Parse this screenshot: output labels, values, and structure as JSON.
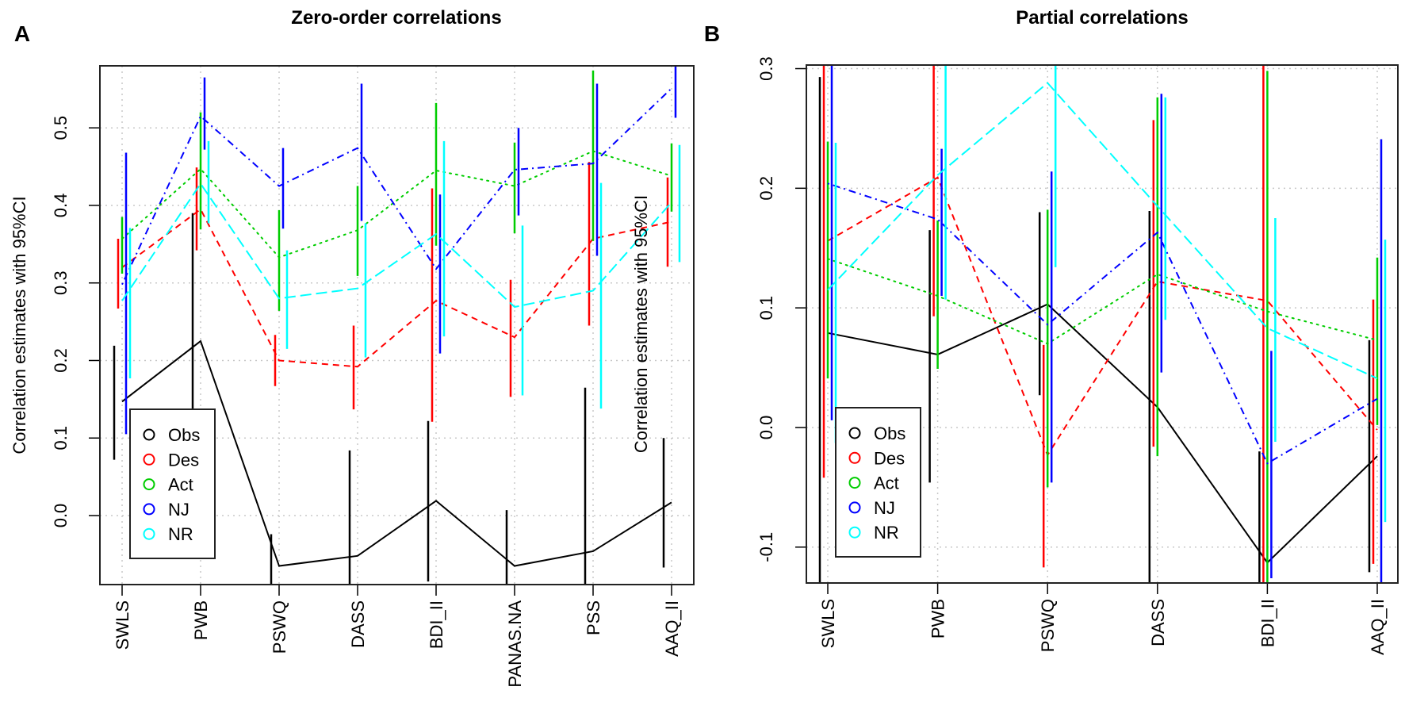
{
  "chart_data": [
    {
      "panel_label": "A",
      "type": "line",
      "title": "Zero-order correlations",
      "ylabel": "Correlation estimates with 95%CI",
      "xlabel": "",
      "ylim": [
        -0.089,
        0.58
      ],
      "yticks": [
        0.0,
        0.1,
        0.2,
        0.3,
        0.4,
        0.5
      ],
      "ytick_labels": [
        "0.0",
        "0.1",
        "0.2",
        "0.3",
        "0.4",
        "0.5"
      ],
      "grid": true,
      "legend_position": "bottom-left",
      "categories": [
        "SWLS",
        "PWB",
        "PSWQ",
        "DASS",
        "BDI_II",
        "PANAS.NA",
        "PSS",
        "AAQ_II"
      ],
      "series": [
        {
          "name": "Obs",
          "color": "#000000",
          "dash": "solid",
          "values": [
            0.147,
            0.225,
            -0.065,
            -0.052,
            0.019,
            -0.065,
            -0.046,
            0.017
          ],
          "ci_low": [
            0.072,
            0.047,
            -0.15,
            -0.19,
            -0.085,
            -0.14,
            -0.26,
            -0.067
          ],
          "ci_high": [
            0.219,
            0.39,
            -0.024,
            0.084,
            0.122,
            0.007,
            0.165,
            0.1
          ]
        },
        {
          "name": "Des",
          "color": "#ff0000",
          "dash": "dashed",
          "values": [
            0.32,
            0.395,
            0.2,
            0.192,
            0.277,
            0.23,
            0.357,
            0.379
          ],
          "ci_low": [
            0.267,
            0.342,
            0.167,
            0.137,
            0.121,
            0.153,
            0.245,
            0.321
          ],
          "ci_high": [
            0.357,
            0.449,
            0.233,
            0.245,
            0.422,
            0.304,
            0.456,
            0.436
          ]
        },
        {
          "name": "Act",
          "color": "#00cd00",
          "dash": "dotted",
          "values": [
            0.357,
            0.447,
            0.333,
            0.368,
            0.445,
            0.425,
            0.47,
            0.438
          ],
          "ci_low": [
            0.312,
            0.369,
            0.264,
            0.309,
            0.348,
            0.364,
            0.354,
            0.392
          ],
          "ci_high": [
            0.385,
            0.52,
            0.394,
            0.425,
            0.532,
            0.481,
            0.574,
            0.48
          ]
        },
        {
          "name": "NJ",
          "color": "#0000ff",
          "dash": "dotdash",
          "values": [
            0.298,
            0.515,
            0.425,
            0.474,
            0.318,
            0.446,
            0.454,
            0.551
          ],
          "ci_low": [
            0.105,
            0.472,
            0.37,
            0.38,
            0.209,
            0.387,
            0.335,
            0.513
          ],
          "ci_high": [
            0.468,
            0.565,
            0.474,
            0.557,
            0.414,
            0.5,
            0.557,
            0.6
          ]
        },
        {
          "name": "NR",
          "color": "#00ffff",
          "dash": "longdash",
          "values": [
            0.277,
            0.428,
            0.28,
            0.293,
            0.363,
            0.269,
            0.29,
            0.404
          ],
          "ci_low": [
            0.177,
            0.377,
            0.215,
            0.204,
            0.231,
            0.155,
            0.138,
            0.327
          ],
          "ci_high": [
            0.371,
            0.483,
            0.342,
            0.377,
            0.483,
            0.374,
            0.429,
            0.478
          ]
        }
      ]
    },
    {
      "panel_label": "B",
      "type": "line",
      "title": "Partial correlations",
      "ylabel": "Correlation estimates with 95%CI",
      "xlabel": "",
      "ylim": [
        -0.13,
        0.303
      ],
      "yticks": [
        -0.1,
        0.0,
        0.1,
        0.2,
        0.3
      ],
      "ytick_labels": [
        "-0.1",
        "0.0",
        "0.1",
        "0.2",
        "0.3"
      ],
      "grid": true,
      "legend_position": "bottom-left",
      "categories": [
        "SWLS",
        "PWB",
        "PSWQ",
        "DASS",
        "BDI_II",
        "AAQ_II"
      ],
      "series": [
        {
          "name": "Obs",
          "color": "#000000",
          "dash": "solid",
          "values": [
            0.079,
            0.061,
            0.103,
            0.017,
            -0.113,
            -0.024
          ],
          "ci_low": [
            -0.14,
            -0.046,
            0.027,
            -0.15,
            -0.2,
            -0.121
          ],
          "ci_high": [
            0.293,
            0.165,
            0.18,
            0.181,
            -0.02,
            0.073
          ]
        },
        {
          "name": "Des",
          "color": "#ff0000",
          "dash": "dashed",
          "values": [
            0.156,
            0.209,
            -0.023,
            0.122,
            0.106,
            -0.002
          ],
          "ci_low": [
            -0.042,
            0.093,
            -0.117,
            -0.016,
            -0.14,
            -0.114
          ],
          "ci_high": [
            0.36,
            0.33,
            0.069,
            0.257,
            0.33,
            0.107
          ]
        },
        {
          "name": "Act",
          "color": "#00cd00",
          "dash": "dotted",
          "values": [
            0.141,
            0.11,
            0.07,
            0.128,
            0.097,
            0.073
          ],
          "ci_low": [
            0.041,
            0.049,
            -0.05,
            -0.024,
            -0.14,
            0.002
          ],
          "ci_high": [
            0.239,
            0.173,
            0.182,
            0.276,
            0.298,
            0.142
          ]
        },
        {
          "name": "NJ",
          "color": "#0000ff",
          "dash": "dotdash",
          "values": [
            0.204,
            0.174,
            0.086,
            0.163,
            -0.03,
            0.024
          ],
          "ci_low": [
            0.006,
            0.11,
            -0.046,
            0.046,
            -0.126,
            -0.19
          ],
          "ci_high": [
            0.4,
            0.233,
            0.214,
            0.279,
            0.064,
            0.241
          ]
        },
        {
          "name": "NR",
          "color": "#00ffff",
          "dash": "longdash",
          "values": [
            0.115,
            0.211,
            0.288,
            0.185,
            0.083,
            0.041
          ],
          "ci_low": [
            -0.013,
            0.107,
            0.134,
            0.09,
            -0.012,
            -0.079
          ],
          "ci_high": [
            0.238,
            0.32,
            0.44,
            0.276,
            0.175,
            0.157
          ]
        }
      ]
    }
  ]
}
